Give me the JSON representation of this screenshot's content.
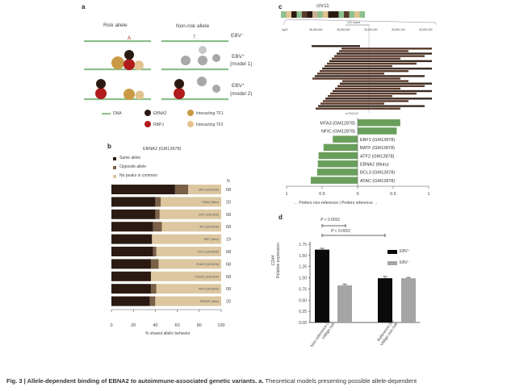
{
  "panel_a": {
    "label": "a",
    "col_risk": "Risk allele",
    "col_nonrisk": "Non-risk allele",
    "row_labels": [
      "EBV⁻",
      "EBV⁺",
      "(model 1)",
      "EBV⁺",
      "(model 2)"
    ],
    "allele_risk": "A",
    "allele_nonrisk": "T",
    "legend": {
      "dna": "DNA",
      "ebna2": "EBNA2",
      "rbpj": "RBPJ",
      "tf1": "Interacting TF1",
      "tf2": "Interacting TF2"
    },
    "colors": {
      "dna": "#8cc08c",
      "ebna2": "#2a1a12",
      "rbpj": "#b01c1c",
      "tf1": "#c99a45",
      "tf2": "#e2c38f",
      "grey": "#a8a8a8"
    }
  },
  "panel_b": {
    "label": "b",
    "title": "EBNA2 (GM12878)",
    "legend": [
      "Same allele",
      "Opposite allele",
      "No peaks in common"
    ],
    "n_header": "N",
    "xlabel": "% shared allelic behavior",
    "xticks": [
      "0",
      "20",
      "40",
      "60",
      "80",
      "100"
    ]
  },
  "panel_c": {
    "label": "c",
    "chrom": "chr11",
    "scale": "200 bases",
    "coords": [
      "hg19",
      "35,208,800",
      "35,208,900",
      "35,209,000",
      "35,209,100",
      "35,209,200"
    ],
    "snp": "rs7941112",
    "xlabel": "← Prefers non-reference | Prefers reference →",
    "xticks": [
      "1",
      "0.5",
      "0",
      "0.5",
      "1"
    ]
  },
  "panel_d": {
    "label": "d",
    "ylabel": "CD44\nRelative expression",
    "ylabel1": "CD44",
    "ylabel2": "Relative expression",
    "p1": "P < 0.0001",
    "p2": "P < 0.0001",
    "yticks": [
      "0.00",
      "0.25",
      "0.50",
      "0.75",
      "1.00",
      "1.25",
      "1.50",
      "1.75"
    ],
    "legend": [
      "EBV⁺",
      "EBV⁻"
    ],
    "groups": [
      {
        "l1": "Non-reference (T)",
        "l2": "Vitiligo risk"
      },
      {
        "l1": "Reference (C)",
        "l2": "Vitiligo non-risk"
      }
    ]
  },
  "caption": {
    "bold": "Fig. 3 | Allele-dependent binding of EBNA2 to autoimmune-associated genetic variants.",
    "panel": "a.",
    "text": "Theoretical models presenting possible allele-dependent"
  },
  "chart_data": [
    {
      "type": "bar",
      "orientation": "horizontal",
      "stacked": true,
      "title": "EBNA2 (GM12878)",
      "categories": [
        "EBF1 (GM12878)",
        "EBNA2 (Mutu)",
        "ATAC (GM12878)",
        "SPI1 (GM12878)",
        "RBPJ (Mutu)",
        "TCF12 (GM12878)",
        "RUNX3 (GM12878)",
        "POU2F2 (GM12878)",
        "PAX5 (GM12878)",
        "EBNA3C (Mutu)"
      ],
      "series": [
        {
          "name": "Same allele",
          "color": "#2a1a12",
          "values": [
            58,
            40,
            40,
            38,
            37,
            38,
            36,
            36,
            36,
            35
          ]
        },
        {
          "name": "Opposite allele",
          "color": "#7a6048",
          "values": [
            12,
            5,
            4,
            8,
            0,
            3,
            7,
            0,
            5,
            5
          ]
        },
        {
          "name": "No peaks in common",
          "color": "#dcc7a0",
          "values": [
            30,
            55,
            56,
            54,
            63,
            59,
            57,
            64,
            59,
            60
          ]
        }
      ],
      "N": [
        "68",
        "20",
        "68",
        "68",
        "19",
        "68",
        "68",
        "68",
        "68",
        "20"
      ],
      "xlabel": "% shared allelic behavior",
      "xlim": [
        0,
        100
      ]
    },
    {
      "type": "bar",
      "orientation": "horizontal",
      "color": "#6a9e5c",
      "categories": [
        "MTA3 (GM12878)",
        "NFIC (GM12878)",
        "EBF1 (GM12878)",
        "BATF (GM12878)",
        "ATF2 (GM12878)",
        "EBNA2 (Mutu)",
        "BCL3 (GM12878)",
        "ATAC (GM12878)"
      ],
      "values": [
        0.6,
        0.55,
        -0.35,
        -0.48,
        -0.55,
        -0.56,
        -0.57,
        -0.66
      ],
      "xlim": [
        -1,
        1
      ],
      "xlabel": "← Prefers non-reference | Prefers reference →"
    },
    {
      "type": "bar",
      "ylabel": "CD44 Relative expression",
      "ylim": [
        0,
        1.75
      ],
      "categories": [
        "Non-reference (T) Vitiligo risk",
        "Reference (C) Vitiligo non-risk"
      ],
      "series": [
        {
          "name": "EBV+",
          "color": "#0a0a0a",
          "values": [
            1.63,
            0.99
          ],
          "err": [
            0.03,
            0.04
          ]
        },
        {
          "name": "EBV-",
          "color": "#a5a5a5",
          "values": [
            0.83,
            0.99
          ],
          "err": [
            0.03,
            0.02
          ]
        }
      ],
      "annotations": [
        "P < 0.0001",
        "P < 0.0001"
      ]
    }
  ]
}
